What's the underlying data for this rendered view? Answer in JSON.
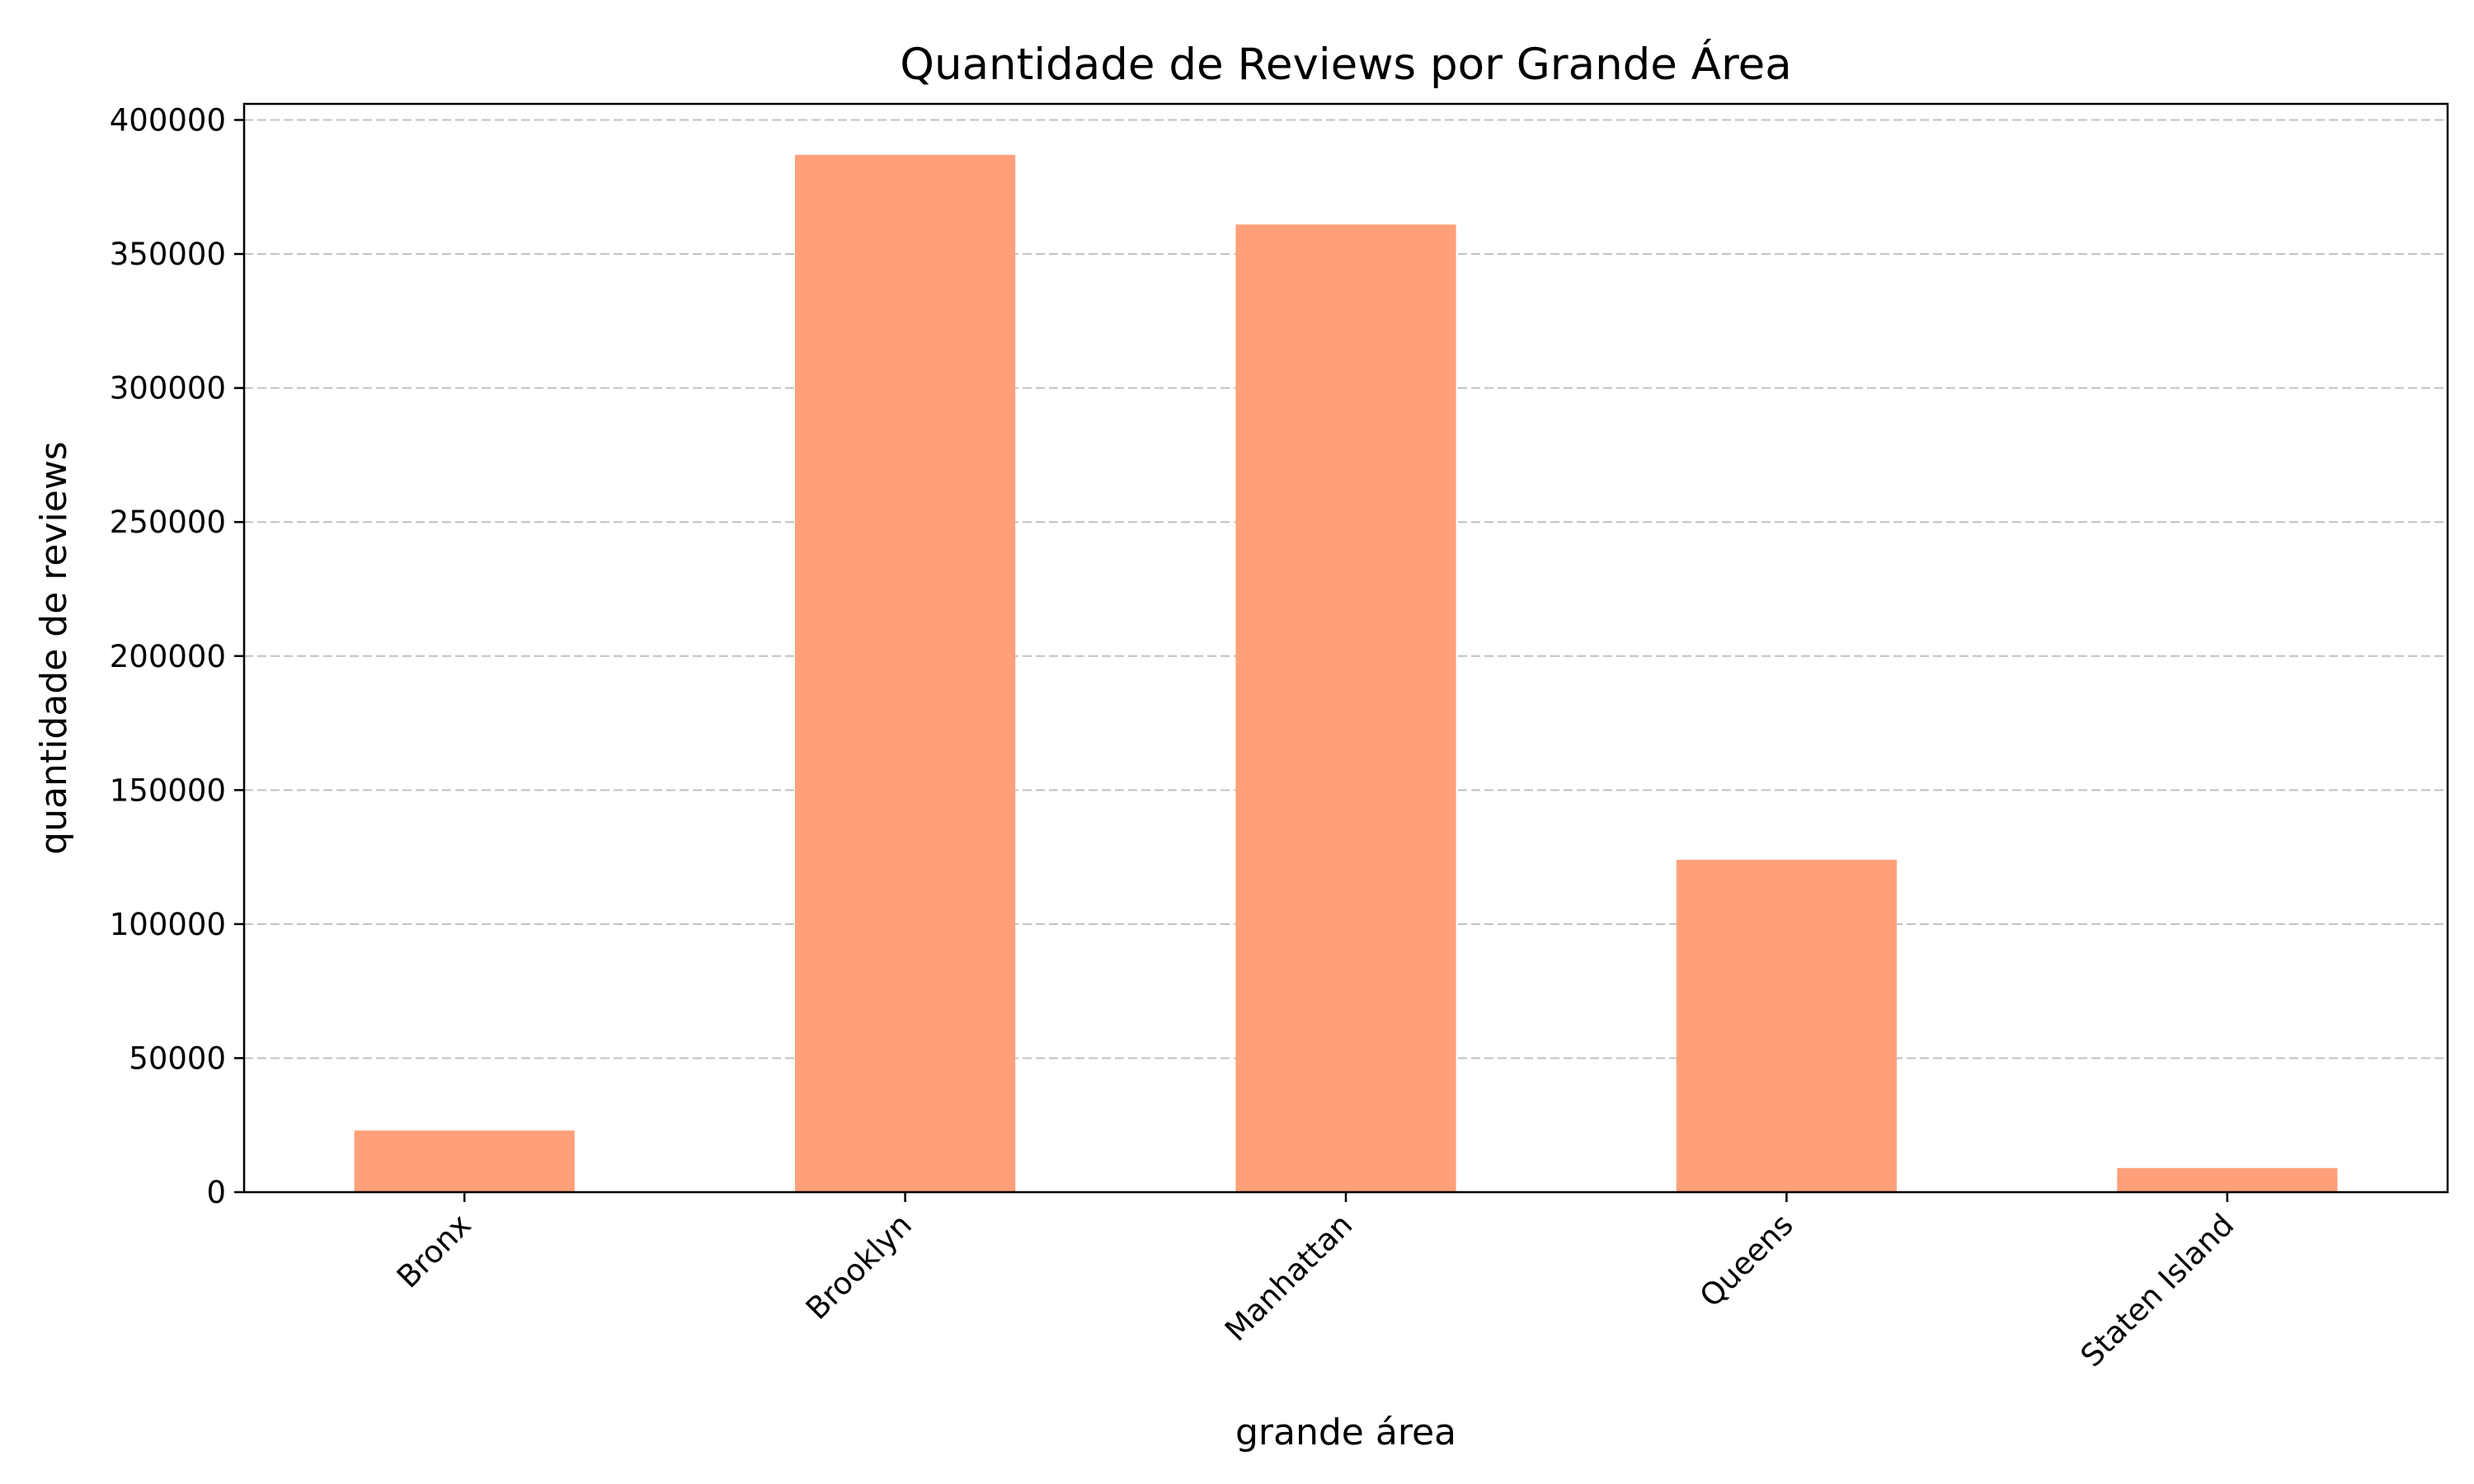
{
  "chart_data": {
    "type": "bar",
    "title": "Quantidade de Reviews por Grande Área",
    "xlabel": "grande área",
    "ylabel": "quantidade de reviews",
    "categories": [
      "Bronx",
      "Brooklyn",
      "Manhattan",
      "Queens",
      "Staten Island"
    ],
    "values": [
      23000,
      387000,
      361000,
      124000,
      9000
    ],
    "ylim": [
      0,
      406000
    ],
    "yticks": [
      0,
      50000,
      100000,
      150000,
      200000,
      250000,
      300000,
      350000,
      400000
    ],
    "ytick_labels": [
      "0",
      "50000",
      "100000",
      "150000",
      "200000",
      "250000",
      "300000",
      "350000",
      "400000"
    ],
    "grid": "horizontal dashed",
    "bar_color": "#ffa07a",
    "grid_color": "#c0c0c0",
    "legend": "none"
  }
}
